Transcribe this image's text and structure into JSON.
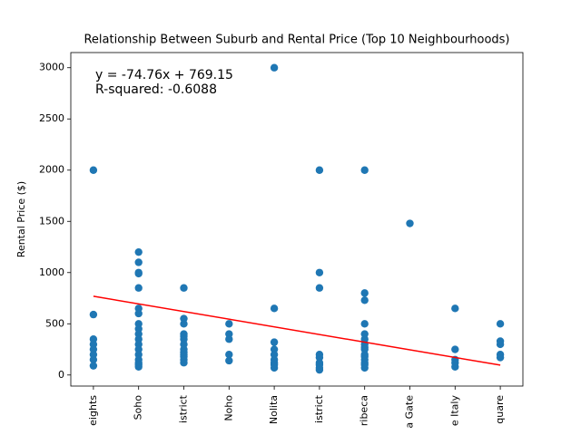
{
  "chart_data": {
    "type": "scatter",
    "title": "Relationship Between Suburb and Rental Price (Top 10 Neighbourhoods)",
    "y_label": "Rental Price ($)",
    "annotations": [
      "y = -74.76x + 769.15",
      "R-squared: -0.6088"
    ],
    "xlim": [
      -0.5,
      9.5
    ],
    "xticks": [
      {
        "value": 0,
        "label": "eights"
      },
      {
        "value": 1,
        "label": "Soho"
      },
      {
        "value": 2,
        "label": "istrict"
      },
      {
        "value": 3,
        "label": "Noho"
      },
      {
        "value": 4,
        "label": "Nolita"
      },
      {
        "value": 5,
        "label": "istrict"
      },
      {
        "value": 6,
        "label": "ribeca"
      },
      {
        "value": 7,
        "label": "a Gate"
      },
      {
        "value": 8,
        "label": "e Italy"
      },
      {
        "value": 9,
        "label": "quare"
      }
    ],
    "ylim": [
      -108,
      3148
    ],
    "yticks": [
      0,
      500,
      1000,
      1500,
      2000,
      2500,
      3000
    ],
    "series": [
      {
        "color": "#1f77b4",
        "x": [
          0,
          0,
          0,
          0,
          0,
          0,
          0,
          0,
          1,
          1,
          1,
          1,
          1,
          1,
          1,
          1,
          1,
          1,
          1,
          1,
          1,
          1,
          1,
          1,
          1,
          1,
          2,
          2,
          2,
          2,
          2,
          2,
          2,
          2,
          2,
          2,
          2,
          2,
          2,
          3,
          3,
          3,
          3,
          3,
          4,
          4,
          4,
          4,
          4,
          4,
          4,
          4,
          4,
          5,
          5,
          5,
          5,
          5,
          5,
          5,
          5,
          5,
          6,
          6,
          6,
          6,
          6,
          6,
          6,
          6,
          6,
          6,
          6,
          6,
          6,
          6,
          6,
          7,
          8,
          8,
          8,
          8,
          8,
          9,
          9,
          9,
          9,
          9
        ],
        "values": [
          2000,
          590,
          350,
          300,
          250,
          200,
          150,
          90,
          1200,
          1100,
          1000,
          990,
          850,
          650,
          600,
          500,
          450,
          400,
          350,
          300,
          250,
          200,
          150,
          120,
          100,
          80,
          850,
          550,
          500,
          400,
          380,
          350,
          300,
          250,
          220,
          200,
          180,
          150,
          120,
          500,
          400,
          350,
          200,
          140,
          3000,
          650,
          320,
          250,
          200,
          150,
          120,
          100,
          70,
          2000,
          1000,
          850,
          200,
          170,
          120,
          100,
          70,
          50,
          2000,
          800,
          730,
          500,
          400,
          350,
          300,
          270,
          250,
          200,
          180,
          150,
          120,
          100,
          70,
          1480,
          650,
          250,
          150,
          120,
          80,
          500,
          330,
          300,
          200,
          170
        ]
      }
    ],
    "fit_line": {
      "color": "#ff0000",
      "x": [
        0,
        9
      ],
      "values": [
        769.15,
        96.31
      ]
    }
  }
}
